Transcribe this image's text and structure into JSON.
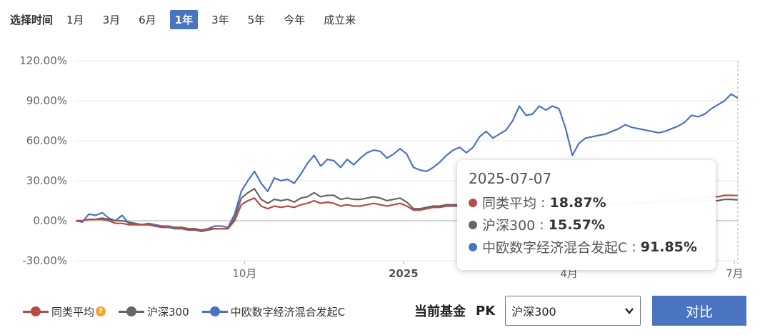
{
  "range": {
    "label": "选择时间",
    "options": [
      "1月",
      "3月",
      "6月",
      "1年",
      "3年",
      "5年",
      "今年",
      "成立来"
    ],
    "active": 3
  },
  "tooltip": {
    "date": "2025-07-07",
    "rows": [
      {
        "name": "同类平均",
        "value": "18.87%",
        "color": "#b84a4a"
      },
      {
        "name": "沪深300",
        "value": "15.57%",
        "color": "#666666"
      },
      {
        "name": "中欧数字经济混合发起C",
        "value": "91.85%",
        "color": "#4a74c0"
      }
    ]
  },
  "legend": {
    "items": [
      {
        "label": "同类平均",
        "color": "#b84a4a",
        "help": "?"
      },
      {
        "label": "沪深300",
        "color": "#666666"
      },
      {
        "label": "中欧数字经济混合发起C",
        "color": "#4a74c0"
      }
    ]
  },
  "pk": {
    "label": "当前基金",
    "pk_text": "PK",
    "selected": "沪深300",
    "button": "对比"
  },
  "chart_data": {
    "type": "line",
    "ylim": [
      -30,
      120
    ],
    "yticks": [
      -30,
      0,
      30,
      60,
      90,
      120
    ],
    "ytick_labels": [
      "-30.00%",
      "0.00%",
      "30.00%",
      "60.00%",
      "90.00%",
      "120.00%"
    ],
    "xlim": [
      0,
      100
    ],
    "xticks": [
      {
        "pos": 25.5,
        "label": "10月",
        "bold": false
      },
      {
        "pos": 49.5,
        "label": "2025",
        "bold": true
      },
      {
        "pos": 74.5,
        "label": "4月",
        "bold": false
      },
      {
        "pos": 99.5,
        "label": "7月",
        "bold": false
      }
    ],
    "grid": true,
    "series": [
      {
        "name": "中欧数字经济混合发起C",
        "color": "#4a74c0",
        "x": [
          0,
          1,
          2,
          3,
          4,
          5,
          6,
          7,
          8,
          9,
          10,
          11,
          12,
          13,
          14,
          15,
          16,
          17,
          18,
          19,
          20,
          21,
          22,
          23,
          24,
          25,
          26,
          27,
          28,
          29,
          30,
          31,
          32,
          33,
          34,
          35,
          36,
          37,
          38,
          39,
          40,
          41,
          42,
          43,
          44,
          45,
          46,
          47,
          48,
          49,
          50,
          51,
          52,
          53,
          54,
          55,
          56,
          57,
          58,
          59,
          60,
          61,
          62,
          63,
          64,
          65,
          66,
          67,
          68,
          69,
          70,
          71,
          72,
          73,
          74,
          75,
          76,
          77,
          78,
          79,
          80,
          81,
          82,
          83,
          84,
          85,
          86,
          87,
          88,
          89,
          90,
          91,
          92,
          93,
          94,
          95,
          96,
          97,
          98,
          99,
          100
        ],
        "values": [
          0,
          -1,
          5,
          4,
          6,
          2,
          0,
          4,
          -2,
          -3,
          -3,
          -2,
          -3,
          -4,
          -4,
          -5,
          -5,
          -6,
          -6,
          -7,
          -6,
          -4,
          -4,
          -5,
          5,
          22,
          30,
          37,
          28,
          22,
          32,
          30,
          31,
          28,
          35,
          43,
          49,
          41,
          46,
          45,
          40,
          46,
          42,
          47,
          51,
          53,
          52,
          47,
          50,
          54,
          50,
          40,
          38,
          37,
          40,
          44,
          49,
          53,
          55,
          51,
          55,
          63,
          67,
          62,
          65,
          68,
          75,
          86,
          79,
          80,
          86,
          83,
          86,
          84,
          69,
          49,
          58,
          62,
          63,
          64,
          65,
          67,
          69,
          72,
          70,
          69,
          68,
          67,
          66,
          67,
          69,
          71,
          74,
          79,
          78,
          80,
          84,
          87,
          90,
          95,
          92
        ]
      },
      {
        "name": "沪深300",
        "color": "#666666",
        "x": [
          0,
          1,
          2,
          3,
          4,
          5,
          6,
          7,
          8,
          9,
          10,
          11,
          12,
          13,
          14,
          15,
          16,
          17,
          18,
          19,
          20,
          21,
          22,
          23,
          24,
          25,
          26,
          27,
          28,
          29,
          30,
          31,
          32,
          33,
          34,
          35,
          36,
          37,
          38,
          39,
          40,
          41,
          42,
          43,
          44,
          45,
          46,
          47,
          48,
          49,
          50,
          51,
          52,
          53,
          54,
          55,
          56,
          57,
          58,
          59,
          60,
          61,
          62,
          63,
          64,
          65,
          66,
          67,
          68,
          69,
          70,
          71,
          72,
          73,
          74,
          75,
          76,
          77,
          78,
          79,
          80,
          81,
          82,
          83,
          84,
          85,
          86,
          87,
          88,
          89,
          90,
          91,
          92,
          93,
          94,
          95,
          96,
          97,
          98,
          99,
          100
        ],
        "values": [
          0,
          0,
          1,
          1,
          2,
          1,
          0,
          0,
          -1,
          -2,
          -3,
          -3,
          -4,
          -5,
          -5,
          -6,
          -6,
          -7,
          -7,
          -8,
          -7,
          -6,
          -6,
          -6,
          2,
          17,
          21,
          24,
          16,
          13,
          16,
          15,
          16,
          14,
          17,
          18,
          21,
          18,
          19,
          19,
          16,
          17,
          16,
          16,
          17,
          18,
          17,
          15,
          16,
          17,
          14,
          9,
          9,
          10,
          11,
          11,
          12,
          12,
          12,
          11,
          11,
          11,
          12,
          12,
          12,
          12,
          12,
          12,
          12,
          12,
          12,
          12,
          12,
          12,
          12,
          12,
          12,
          12,
          12,
          12,
          12,
          12,
          12,
          12,
          12,
          13,
          13,
          13,
          13,
          13,
          13,
          14,
          14,
          14,
          14,
          15,
          15,
          15,
          16,
          16,
          15.57
        ]
      },
      {
        "name": "同类平均",
        "color": "#b84a4a",
        "x": [
          0,
          1,
          2,
          3,
          4,
          5,
          6,
          7,
          8,
          9,
          10,
          11,
          12,
          13,
          14,
          15,
          16,
          17,
          18,
          19,
          20,
          21,
          22,
          23,
          24,
          25,
          26,
          27,
          28,
          29,
          30,
          31,
          32,
          33,
          34,
          35,
          36,
          37,
          38,
          39,
          40,
          41,
          42,
          43,
          44,
          45,
          46,
          47,
          48,
          49,
          50,
          51,
          52,
          53,
          54,
          55,
          56,
          57,
          58,
          59,
          60,
          61,
          62,
          63,
          64,
          65,
          66,
          67,
          68,
          69,
          70,
          71,
          72,
          73,
          74,
          75,
          76,
          77,
          78,
          79,
          80,
          81,
          82,
          83,
          84,
          85,
          86,
          87,
          88,
          89,
          90,
          91,
          92,
          93,
          94,
          95,
          96,
          97,
          98,
          99,
          100
        ],
        "values": [
          0,
          0,
          1,
          1,
          1,
          0,
          -2,
          -2,
          -3,
          -3,
          -3,
          -3,
          -4,
          -4,
          -5,
          -5,
          -5,
          -6,
          -6,
          -7,
          -6,
          -6,
          -6,
          -6,
          0,
          12,
          15,
          17,
          11,
          9,
          11,
          10,
          11,
          10,
          12,
          13,
          15,
          13,
          14,
          13,
          11,
          12,
          11,
          11,
          12,
          13,
          12,
          11,
          12,
          13,
          11,
          8,
          8,
          9,
          10,
          10,
          11,
          11,
          11,
          10,
          10,
          10,
          10,
          11,
          11,
          11,
          11,
          11,
          11,
          12,
          12,
          12,
          12,
          12,
          12,
          12,
          12,
          12,
          12,
          12,
          13,
          13,
          13,
          13,
          13,
          14,
          14,
          14,
          15,
          15,
          15,
          16,
          16,
          16,
          17,
          17,
          18,
          18,
          19,
          19,
          18.87
        ]
      }
    ]
  }
}
